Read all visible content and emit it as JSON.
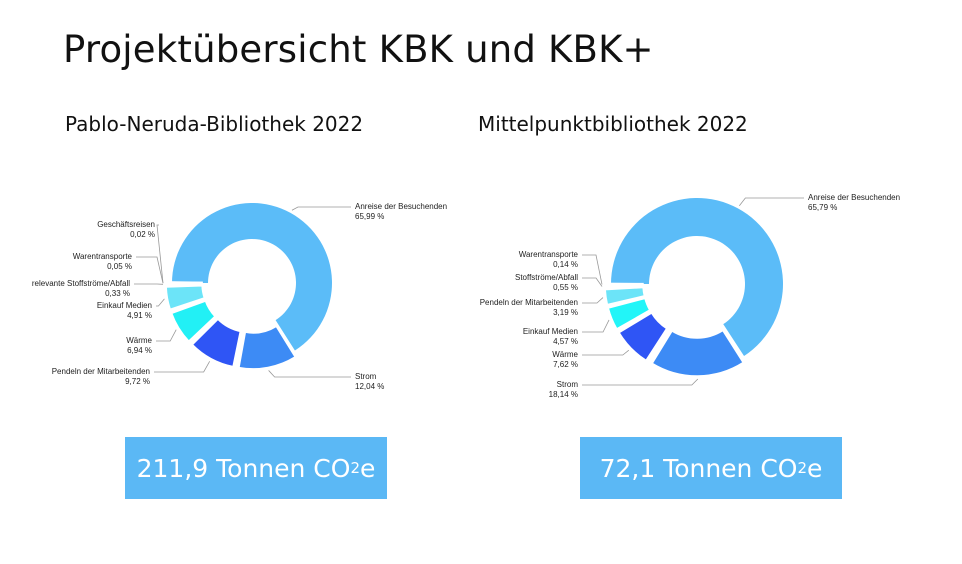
{
  "title": "Projektübersicht KBK und KBK+",
  "chart_data": [
    {
      "type": "pie",
      "donut": true,
      "title": "Pablo-Neruda-Bibliothek 2022",
      "categories": [
        "Anreise der Besuchenden",
        "Strom",
        "Pendeln der Mitarbeitenden",
        "Wärme",
        "Einkauf Medien",
        "relevante Stoffströme/Abfall",
        "Warentransporte",
        "Geschäftsreisen"
      ],
      "values": [
        65.99,
        12.04,
        9.72,
        6.94,
        4.91,
        0.33,
        0.05,
        0.02
      ],
      "value_labels": [
        "65,99 %",
        "12,04 %",
        "9,72 %",
        "6,94 %",
        "4,91 %",
        "0,33 %",
        "0,05 %",
        "0,02 %"
      ],
      "colors": [
        "#5bbcf8",
        "#3d8bf5",
        "#2f55f5",
        "#22f0f5",
        "#6ce4f8",
        "#2a3a5a",
        "#1a2a4a",
        "#444444"
      ],
      "total": {
        "value": "211,9 Tonnen CO",
        "sub": "2",
        "unit": "e"
      }
    },
    {
      "type": "pie",
      "donut": true,
      "title": "Mittelpunktbibliothek 2022",
      "categories": [
        "Anreise der Besuchenden",
        "Strom",
        "Wärme",
        "Einkauf Medien",
        "Pendeln der Mitarbeitenden",
        "Stoffströme/Abfall",
        "Warentransporte"
      ],
      "values": [
        65.79,
        18.14,
        7.62,
        4.57,
        3.19,
        0.55,
        0.14
      ],
      "value_labels": [
        "65,79 %",
        "18,14 %",
        "7,62 %",
        "4,57 %",
        "3,19 %",
        "0,55 %",
        "0,14 %"
      ],
      "colors": [
        "#5bbcf8",
        "#3d8bf5",
        "#2f55f5",
        "#22f5f8",
        "#6ce4f8",
        "#2a3a5a",
        "#1a2a4a"
      ],
      "total": {
        "value": "72,1 Tonnen CO",
        "sub": "2",
        "unit": "e"
      }
    }
  ]
}
